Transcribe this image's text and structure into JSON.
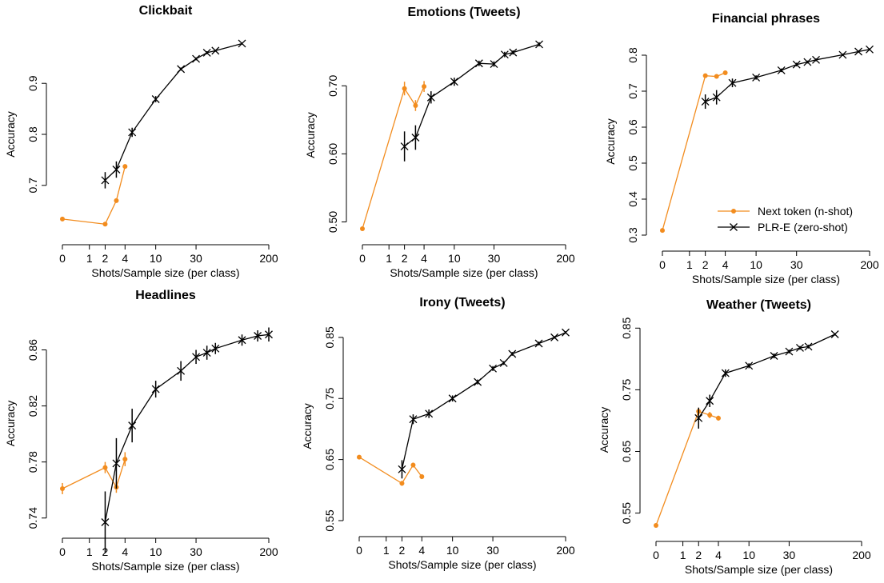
{
  "colors": {
    "next_token": "#f28c1e",
    "plr": "#000000"
  },
  "chart_data": [
    {
      "type": "line",
      "title": "Clickbait",
      "xlabel": "Shots/Sample size (per class)",
      "ylabel": "Accuracy",
      "x_ticks": [
        "0",
        "1",
        "2",
        "4",
        "10",
        "30",
        "200"
      ],
      "y_ticks": [
        "0.7",
        "0.8",
        "0.9"
      ],
      "y_tick_values": [
        0.7,
        0.8,
        0.9
      ],
      "ylim": [
        0.615,
        0.985
      ],
      "series": [
        {
          "name": "Next token (n-shot)",
          "points": [
            {
              "x": 0,
              "y": 0.634,
              "err": 0
            },
            {
              "x": 2,
              "y": 0.624,
              "err": 0
            },
            {
              "x": 3,
              "y": 0.67,
              "err": 0.004
            },
            {
              "x": 4,
              "y": 0.737,
              "err": 0.004
            }
          ]
        },
        {
          "name": "PLR-E (zero-shot)",
          "points": [
            {
              "x": 2,
              "y": 0.71,
              "err": 0.016
            },
            {
              "x": 3,
              "y": 0.731,
              "err": 0.016
            },
            {
              "x": 5,
              "y": 0.804,
              "err": 0.009
            },
            {
              "x": 10,
              "y": 0.869,
              "err": 0.006
            },
            {
              "x": 20,
              "y": 0.928,
              "err": 0.003
            },
            {
              "x": 30,
              "y": 0.948,
              "err": 0.003
            },
            {
              "x": 40,
              "y": 0.96,
              "err": 0.003
            },
            {
              "x": 50,
              "y": 0.964,
              "err": 0.002
            },
            {
              "x": 100,
              "y": 0.978,
              "err": 0.002
            }
          ]
        }
      ]
    },
    {
      "type": "line",
      "title": "Emotions (Tweets)",
      "xlabel": "Shots/Sample size (per class)",
      "ylabel": "Accuracy",
      "x_ticks": [
        "0",
        "1",
        "2",
        "4",
        "10",
        "30",
        "200"
      ],
      "y_ticks": [
        "0.50",
        "0.60",
        "0.70"
      ],
      "y_tick_values": [
        0.5,
        0.6,
        0.7
      ],
      "ylim": [
        0.49,
        0.765
      ],
      "series": [
        {
          "name": "Next token (n-shot)",
          "points": [
            {
              "x": 0,
              "y": 0.49,
              "err": 0
            },
            {
              "x": 2,
              "y": 0.696,
              "err": 0.01
            },
            {
              "x": 3,
              "y": 0.671,
              "err": 0.008
            },
            {
              "x": 4,
              "y": 0.699,
              "err": 0.008
            }
          ]
        },
        {
          "name": "PLR-E (zero-shot)",
          "points": [
            {
              "x": 2,
              "y": 0.611,
              "err": 0.022
            },
            {
              "x": 3,
              "y": 0.624,
              "err": 0.018
            },
            {
              "x": 5,
              "y": 0.683,
              "err": 0.009
            },
            {
              "x": 10,
              "y": 0.706,
              "err": 0.006
            },
            {
              "x": 20,
              "y": 0.733,
              "err": 0.004
            },
            {
              "x": 30,
              "y": 0.732,
              "err": 0.004
            },
            {
              "x": 40,
              "y": 0.746,
              "err": 0.004
            },
            {
              "x": 50,
              "y": 0.749,
              "err": 0.003
            },
            {
              "x": 100,
              "y": 0.761,
              "err": 0.003
            }
          ]
        }
      ]
    },
    {
      "type": "line",
      "title": "Financial phrases",
      "xlabel": "Shots/Sample size (per class)",
      "ylabel": "Accuracy",
      "x_ticks": [
        "0",
        "1",
        "2",
        "4",
        "10",
        "30",
        "200"
      ],
      "y_ticks": [
        "0.3",
        "0.4",
        "0.5",
        "0.6",
        "0.7",
        "0.8"
      ],
      "y_tick_values": [
        0.3,
        0.4,
        0.5,
        0.6,
        0.7,
        0.8
      ],
      "ylim": [
        0.3,
        0.82
      ],
      "legend": {
        "position": "bottom-right",
        "entries": [
          "Next token (n-shot)",
          "PLR-E (zero-shot)"
        ]
      },
      "series": [
        {
          "name": "Next token (n-shot)",
          "points": [
            {
              "x": 0,
              "y": 0.313,
              "err": 0
            },
            {
              "x": 2,
              "y": 0.743,
              "err": 0.003
            },
            {
              "x": 3,
              "y": 0.741,
              "err": 0.003
            },
            {
              "x": 4,
              "y": 0.751,
              "err": 0.003
            }
          ]
        },
        {
          "name": "PLR-E (zero-shot)",
          "points": [
            {
              "x": 2,
              "y": 0.671,
              "err": 0.02
            },
            {
              "x": 3,
              "y": 0.683,
              "err": 0.02
            },
            {
              "x": 5,
              "y": 0.723,
              "err": 0.012
            },
            {
              "x": 10,
              "y": 0.738,
              "err": 0.006
            },
            {
              "x": 20,
              "y": 0.758,
              "err": 0.005
            },
            {
              "x": 30,
              "y": 0.774,
              "err": 0.005
            },
            {
              "x": 40,
              "y": 0.781,
              "err": 0.004
            },
            {
              "x": 50,
              "y": 0.787,
              "err": 0.004
            },
            {
              "x": 100,
              "y": 0.801,
              "err": 0.003
            },
            {
              "x": 150,
              "y": 0.81,
              "err": 0.003
            },
            {
              "x": 200,
              "y": 0.816,
              "err": 0.003
            }
          ]
        }
      ]
    },
    {
      "type": "line",
      "title": "Headlines",
      "xlabel": "Shots/Sample size (per class)",
      "ylabel": "Accuracy",
      "x_ticks": [
        "0",
        "1",
        "2",
        "4",
        "10",
        "30",
        "200"
      ],
      "y_ticks": [
        "0.74",
        "0.78",
        "0.82",
        "0.86"
      ],
      "y_tick_values": [
        0.74,
        0.78,
        0.82,
        0.86
      ],
      "ylim": [
        0.737,
        0.878
      ],
      "series": [
        {
          "name": "Next token (n-shot)",
          "points": [
            {
              "x": 0,
              "y": 0.761,
              "err": 0.004
            },
            {
              "x": 2,
              "y": 0.776,
              "err": 0.004
            },
            {
              "x": 3,
              "y": 0.762,
              "err": 0.004
            },
            {
              "x": 4,
              "y": 0.782,
              "err": 0.005
            }
          ]
        },
        {
          "name": "PLR-E (zero-shot)",
          "points": [
            {
              "x": 2,
              "y": 0.737,
              "err": 0.022
            },
            {
              "x": 3,
              "y": 0.779,
              "err": 0.018
            },
            {
              "x": 5,
              "y": 0.806,
              "err": 0.012
            },
            {
              "x": 10,
              "y": 0.832,
              "err": 0.006
            },
            {
              "x": 20,
              "y": 0.845,
              "err": 0.007
            },
            {
              "x": 30,
              "y": 0.855,
              "err": 0.005
            },
            {
              "x": 40,
              "y": 0.858,
              "err": 0.005
            },
            {
              "x": 50,
              "y": 0.861,
              "err": 0.004
            },
            {
              "x": 100,
              "y": 0.867,
              "err": 0.004
            },
            {
              "x": 150,
              "y": 0.87,
              "err": 0.004
            },
            {
              "x": 200,
              "y": 0.871,
              "err": 0.005
            }
          ]
        }
      ]
    },
    {
      "type": "line",
      "title": "Irony (Tweets)",
      "xlabel": "Shots/Sample size (per class)",
      "ylabel": "Accuracy",
      "x_ticks": [
        "0",
        "1",
        "2",
        "4",
        "10",
        "30",
        "200"
      ],
      "y_ticks": [
        "0.55",
        "0.65",
        "0.75",
        "0.85"
      ],
      "y_tick_values": [
        0.55,
        0.65,
        0.75,
        0.85
      ],
      "ylim": [
        0.55,
        0.859
      ],
      "series": [
        {
          "name": "Next token (n-shot)",
          "points": [
            {
              "x": 0,
              "y": 0.654,
              "err": 0
            },
            {
              "x": 2,
              "y": 0.611,
              "err": 0.004
            },
            {
              "x": 3,
              "y": 0.641,
              "err": 0.004
            },
            {
              "x": 4,
              "y": 0.622,
              "err": 0.004
            }
          ]
        },
        {
          "name": "PLR-E (zero-shot)",
          "points": [
            {
              "x": 2,
              "y": 0.634,
              "err": 0.015
            },
            {
              "x": 3,
              "y": 0.716,
              "err": 0.008
            },
            {
              "x": 5,
              "y": 0.725,
              "err": 0.007
            },
            {
              "x": 10,
              "y": 0.75,
              "err": 0.005
            },
            {
              "x": 20,
              "y": 0.777,
              "err": 0.004
            },
            {
              "x": 30,
              "y": 0.799,
              "err": 0.004
            },
            {
              "x": 40,
              "y": 0.808,
              "err": 0.003
            },
            {
              "x": 50,
              "y": 0.823,
              "err": 0.003
            },
            {
              "x": 100,
              "y": 0.84,
              "err": 0.003
            },
            {
              "x": 150,
              "y": 0.85,
              "err": 0.002
            },
            {
              "x": 200,
              "y": 0.858,
              "err": 0.002
            }
          ]
        }
      ]
    },
    {
      "type": "line",
      "title": "Weather (Tweets)",
      "xlabel": "Shots/Sample size (per class)",
      "ylabel": "Accuracy",
      "x_ticks": [
        "0",
        "1",
        "2",
        "4",
        "10",
        "30",
        "200"
      ],
      "y_ticks": [
        "0.55",
        "0.65",
        "0.75",
        "0.85"
      ],
      "y_tick_values": [
        0.55,
        0.65,
        0.75,
        0.85
      ],
      "ylim": [
        0.53,
        0.84
      ],
      "series": [
        {
          "name": "Next token (n-shot)",
          "points": [
            {
              "x": 0,
              "y": 0.53,
              "err": 0
            },
            {
              "x": 2,
              "y": 0.715,
              "err": 0.006
            },
            {
              "x": 3,
              "y": 0.709,
              "err": 0.005
            },
            {
              "x": 4,
              "y": 0.704,
              "err": 0.004
            }
          ]
        },
        {
          "name": "PLR-E (zero-shot)",
          "points": [
            {
              "x": 2,
              "y": 0.704,
              "err": 0.017
            },
            {
              "x": 3,
              "y": 0.732,
              "err": 0.01
            },
            {
              "x": 5,
              "y": 0.777,
              "err": 0.006
            },
            {
              "x": 10,
              "y": 0.789,
              "err": 0.004
            },
            {
              "x": 20,
              "y": 0.805,
              "err": 0.004
            },
            {
              "x": 30,
              "y": 0.812,
              "err": 0.003
            },
            {
              "x": 40,
              "y": 0.818,
              "err": 0.003
            },
            {
              "x": 50,
              "y": 0.82,
              "err": 0.003
            },
            {
              "x": 100,
              "y": 0.84,
              "err": 0.002
            }
          ]
        }
      ]
    }
  ]
}
